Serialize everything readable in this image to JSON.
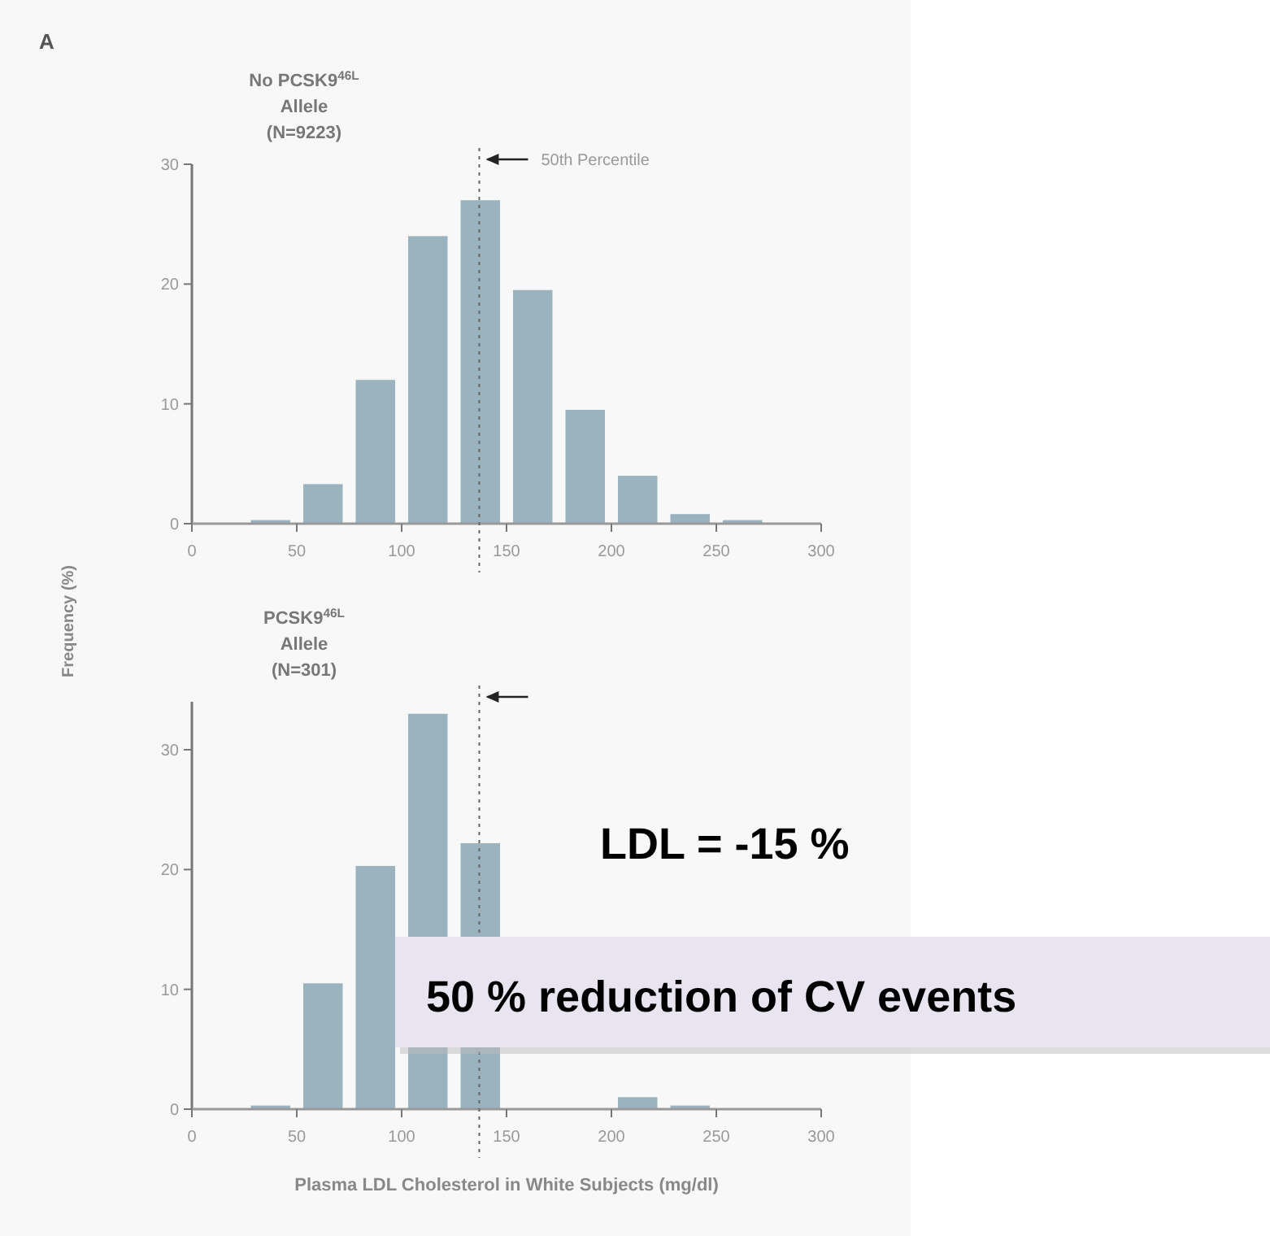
{
  "chart_data": [
    {
      "type": "histogram",
      "title": "No PCSK9$^{46L}$\nAllele\n(N=9223)",
      "ylabel": "Frequency (%)",
      "annotations": [
        "A"
      ],
      "bins": [
        0,
        25,
        50,
        75,
        100,
        125,
        150,
        175,
        200,
        225,
        250,
        275,
        300
      ],
      "values": [
        null,
        0.3,
        3.3,
        12,
        24,
        27,
        19.5,
        9.5,
        4,
        0.8,
        0.3,
        null
      ],
      "color": "#9ab3bf",
      "xlim": [
        0,
        300
      ],
      "xticks": [
        0,
        50,
        100,
        150,
        200,
        250,
        300
      ],
      "ylim": [
        0,
        30
      ],
      "yticks": [
        0,
        10,
        20,
        30
      ],
      "ref_lines": [
        {
          "axis": "x",
          "value": 137,
          "label": "50th Percentile",
          "line_style": "dotted"
        }
      ]
    },
    {
      "type": "histogram",
      "title": "PCSK9$^{46L}$\nAllele\n(N=301)",
      "xlabel": "Plasma LDL Cholesterol in White Subjects (mg/dl)",
      "annotations": [
        "LDL = -15 %",
        "50 % reduction of CV events"
      ],
      "bins": [
        0,
        25,
        50,
        75,
        100,
        125,
        150,
        175,
        200,
        225,
        250,
        275,
        300
      ],
      "values": [
        null,
        0.3,
        10.5,
        20.3,
        33,
        22.2,
        null,
        null,
        1,
        0.3,
        null,
        null
      ],
      "color": "#9ab3bf",
      "xlim": [
        0,
        300
      ],
      "xticks": [
        0,
        50,
        100,
        150,
        200,
        250,
        300
      ],
      "ylim": [
        0,
        34
      ],
      "yticks": [
        0,
        10,
        20,
        30
      ],
      "ref_lines": [
        {
          "axis": "x",
          "value": 137,
          "label": null,
          "line_style": "dotted"
        }
      ]
    }
  ]
}
